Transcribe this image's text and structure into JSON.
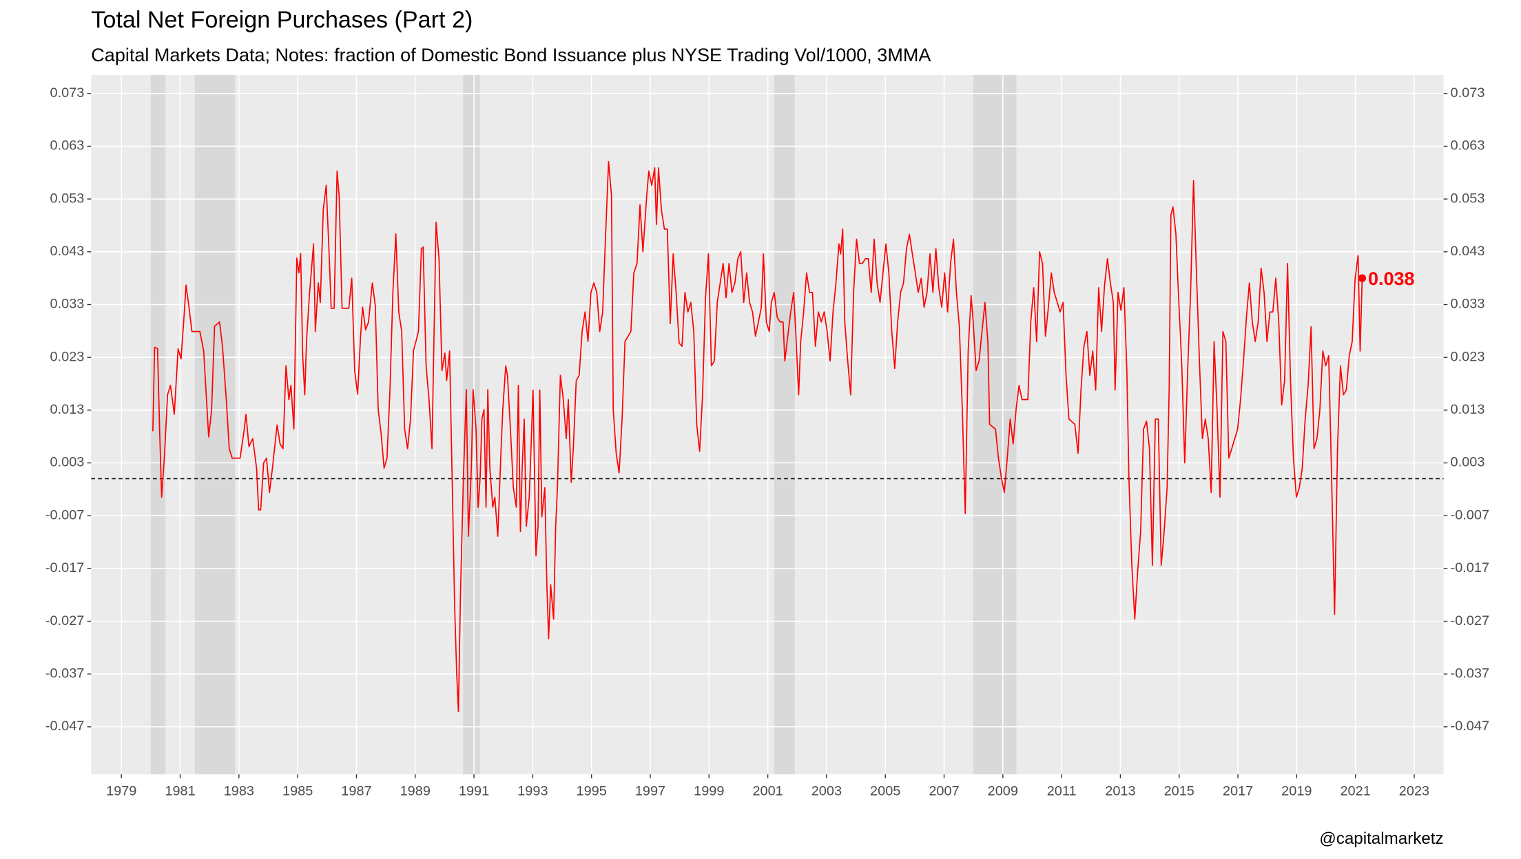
{
  "chart_data": {
    "type": "line",
    "title": "Total Net Foreign Purchases (Part 2)",
    "subtitle": "Capital Markets Data; Notes: fraction of Domestic Bond Issuance plus NYSE Trading Vol/1000, 3MMA",
    "caption": "@capitalmarketz",
    "xlim": [
      1977.97,
      2024.0
    ],
    "ylim": [
      -0.056,
      0.0765
    ],
    "xticks": [
      1979,
      1981,
      1983,
      1985,
      1987,
      1989,
      1991,
      1993,
      1995,
      1997,
      1999,
      2001,
      2003,
      2005,
      2007,
      2009,
      2011,
      2013,
      2015,
      2017,
      2019,
      2021,
      2023
    ],
    "yticks": [
      -0.047,
      -0.037,
      -0.027,
      -0.017,
      -0.007,
      0.003,
      0.013,
      0.023,
      0.033,
      0.043,
      0.053,
      0.063,
      0.073
    ],
    "grid": true,
    "secondary_axis_mirror": true,
    "hline": 0,
    "recessions": [
      [
        1980.0,
        1980.5
      ],
      [
        1981.5,
        1982.87
      ],
      [
        1990.63,
        1991.2
      ],
      [
        2001.22,
        2001.92
      ],
      [
        2007.99,
        2009.46
      ]
    ],
    "recession_color": "#d9d9d9",
    "annotation": "0.038",
    "series": [
      {
        "name": "Total Net Foreign Purchases",
        "color": "#ff0000",
        "x": [
          1980.07,
          1980.13,
          1980.23,
          1980.3,
          1980.37,
          1980.47,
          1980.57,
          1980.67,
          1980.8,
          1980.93,
          1981.03,
          1981.13,
          1981.2,
          1981.3,
          1981.4,
          1981.67,
          1981.8,
          1981.97,
          1982.07,
          1982.17,
          1982.34,
          1982.44,
          1982.57,
          1982.67,
          1982.77,
          1983.04,
          1983.17,
          1983.24,
          1983.34,
          1983.47,
          1983.6,
          1983.67,
          1983.74,
          1983.84,
          1983.94,
          1984.04,
          1984.14,
          1984.3,
          1984.4,
          1984.5,
          1984.6,
          1984.7,
          1984.77,
          1984.87,
          1984.97,
          1985.04,
          1985.1,
          1985.17,
          1985.24,
          1985.3,
          1985.4,
          1985.54,
          1985.6,
          1985.7,
          1985.77,
          1985.87,
          1985.97,
          1986.07,
          1986.14,
          1986.24,
          1986.34,
          1986.41,
          1986.51,
          1986.74,
          1986.84,
          1986.94,
          1987.04,
          1987.14,
          1987.21,
          1987.31,
          1987.41,
          1987.54,
          1987.64,
          1987.74,
          1987.84,
          1987.94,
          1988.04,
          1988.14,
          1988.24,
          1988.34,
          1988.44,
          1988.54,
          1988.64,
          1988.74,
          1988.84,
          1988.94,
          1989.11,
          1989.21,
          1989.27,
          1989.37,
          1989.47,
          1989.57,
          1989.71,
          1989.81,
          1989.91,
          1990.01,
          1990.07,
          1990.17,
          1990.27,
          1990.34,
          1990.41,
          1990.47,
          1990.54,
          1990.64,
          1990.74,
          1990.81,
          1990.91,
          1990.97,
          1991.07,
          1991.14,
          1991.21,
          1991.27,
          1991.34,
          1991.41,
          1991.47,
          1991.54,
          1991.64,
          1991.71,
          1991.81,
          1991.91,
          1991.98,
          1992.08,
          1992.14,
          1992.24,
          1992.34,
          1992.44,
          1992.51,
          1992.58,
          1992.64,
          1992.71,
          1992.78,
          1992.88,
          1992.94,
          1993.01,
          1993.11,
          1993.18,
          1993.24,
          1993.31,
          1993.41,
          1993.48,
          1993.54,
          1993.61,
          1993.71,
          1993.78,
          1993.84,
          1993.94,
          1994.04,
          1994.14,
          1994.21,
          1994.31,
          1994.38,
          1994.48,
          1994.58,
          1994.68,
          1994.78,
          1994.88,
          1994.98,
          1995.08,
          1995.18,
          1995.28,
          1995.38,
          1995.48,
          1995.58,
          1995.68,
          1995.74,
          1995.84,
          1995.94,
          1996.04,
          1996.14,
          1996.34,
          1996.44,
          1996.55,
          1996.65,
          1996.75,
          1996.88,
          1996.95,
          1997.05,
          1997.15,
          1997.21,
          1997.28,
          1997.38,
          1997.48,
          1997.58,
          1997.68,
          1997.78,
          1997.88,
          1997.98,
          1998.08,
          1998.18,
          1998.28,
          1998.38,
          1998.48,
          1998.58,
          1998.68,
          1998.78,
          1998.88,
          1998.98,
          1999.08,
          1999.18,
          1999.28,
          1999.38,
          1999.48,
          1999.58,
          1999.68,
          1999.78,
          1999.88,
          1999.98,
          2000.08,
          2000.18,
          2000.28,
          2000.38,
          2000.48,
          2000.58,
          2000.68,
          2000.78,
          2000.85,
          2000.95,
          2001.05,
          2001.12,
          2001.22,
          2001.32,
          2001.42,
          2001.52,
          2001.58,
          2001.68,
          2001.78,
          2001.88,
          2001.95,
          2002.05,
          2002.12,
          2002.22,
          2002.32,
          2002.42,
          2002.52,
          2002.62,
          2002.72,
          2002.82,
          2002.92,
          2003.02,
          2003.12,
          2003.22,
          2003.32,
          2003.42,
          2003.48,
          2003.55,
          2003.62,
          2003.72,
          2003.82,
          2003.92,
          2004.02,
          2004.12,
          2004.22,
          2004.32,
          2004.42,
          2004.52,
          2004.62,
          2004.72,
          2004.82,
          2004.92,
          2005.02,
          2005.12,
          2005.22,
          2005.32,
          2005.42,
          2005.52,
          2005.62,
          2005.72,
          2005.82,
          2005.92,
          2006.02,
          2006.12,
          2006.22,
          2006.32,
          2006.42,
          2006.52,
          2006.62,
          2006.72,
          2006.82,
          2006.92,
          2007.02,
          2007.12,
          2007.22,
          2007.32,
          2007.42,
          2007.52,
          2007.62,
          2007.72,
          2007.82,
          2007.92,
          2007.99,
          2008.09,
          2008.19,
          2008.29,
          2008.39,
          2008.49,
          2008.55,
          2008.75,
          2008.85,
          2008.95,
          2009.05,
          2009.15,
          2009.25,
          2009.35,
          2009.45,
          2009.55,
          2009.65,
          2009.85,
          2009.95,
          2010.05,
          2010.15,
          2010.25,
          2010.35,
          2010.45,
          2010.55,
          2010.65,
          2010.75,
          2010.95,
          2011.05,
          2011.15,
          2011.25,
          2011.45,
          2011.56,
          2011.66,
          2011.76,
          2011.86,
          2011.96,
          2012.06,
          2012.16,
          2012.26,
          2012.36,
          2012.46,
          2012.56,
          2012.66,
          2012.76,
          2012.82,
          2012.92,
          2013.02,
          2013.12,
          2013.22,
          2013.29,
          2013.39,
          2013.49,
          2013.59,
          2013.69,
          2013.79,
          2013.89,
          2013.99,
          2014.09,
          2014.19,
          2014.29,
          2014.39,
          2014.49,
          2014.59,
          2014.66,
          2014.72,
          2014.79,
          2014.89,
          2014.99,
          2015.09,
          2015.19,
          2015.29,
          2015.39,
          2015.49,
          2015.59,
          2015.69,
          2015.79,
          2015.89,
          2015.99,
          2016.09,
          2016.19,
          2016.29,
          2016.39,
          2016.49,
          2016.59,
          2016.69,
          2016.79,
          2016.99,
          2017.09,
          2017.19,
          2017.29,
          2017.39,
          2017.49,
          2017.59,
          2017.69,
          2017.79,
          2017.89,
          2017.99,
          2018.09,
          2018.19,
          2018.29,
          2018.39,
          2018.49,
          2018.59,
          2018.69,
          2018.79,
          2018.89,
          2018.99,
          2019.09,
          2019.19,
          2019.29,
          2019.39,
          2019.49,
          2019.59,
          2019.69,
          2019.79,
          2019.89,
          2019.99,
          2020.09,
          2020.19,
          2020.29,
          2020.39,
          2020.49,
          2020.59,
          2020.69,
          2020.79,
          2020.89,
          2020.99,
          2021.09,
          2021.16,
          2021.23
        ],
        "values": [
          0.009,
          0.0249,
          0.0247,
          0.0094,
          -0.0035,
          0.0048,
          0.0159,
          0.0177,
          0.0122,
          0.0246,
          0.0227,
          0.0306,
          0.0367,
          0.0325,
          0.0279,
          0.0279,
          0.0242,
          0.0079,
          0.0131,
          0.0289,
          0.0297,
          0.0251,
          0.015,
          0.0057,
          0.0039,
          0.0039,
          0.0089,
          0.0122,
          0.0061,
          0.0076,
          0.002,
          -0.0059,
          -0.0059,
          0.003,
          0.0039,
          -0.0026,
          0.002,
          0.0102,
          0.0066,
          0.0057,
          0.0214,
          0.015,
          0.0177,
          0.0094,
          0.0418,
          0.039,
          0.0427,
          0.0233,
          0.0159,
          0.0261,
          0.0349,
          0.0445,
          0.0279,
          0.0371,
          0.0334,
          0.051,
          0.0556,
          0.0426,
          0.0323,
          0.0323,
          0.0583,
          0.0537,
          0.0323,
          0.0323,
          0.038,
          0.0205,
          0.016,
          0.027,
          0.0325,
          0.0282,
          0.0297,
          0.0371,
          0.0329,
          0.0131,
          0.0085,
          0.002,
          0.0039,
          0.0168,
          0.0353,
          0.0464,
          0.0316,
          0.0279,
          0.0094,
          0.0057,
          0.0113,
          0.0242,
          0.0279,
          0.0436,
          0.0439,
          0.0214,
          0.015,
          0.0057,
          0.0486,
          0.0417,
          0.0205,
          0.0238,
          0.0186,
          0.0242,
          -0.0035,
          -0.0238,
          -0.0367,
          -0.0441,
          -0.022,
          0.0002,
          0.0169,
          -0.0109,
          0.002,
          0.0169,
          0.0094,
          -0.0054,
          0.0002,
          0.0113,
          0.0131,
          -0.0054,
          0.0169,
          0.002,
          -0.0054,
          -0.0035,
          -0.0109,
          0.0039,
          0.0131,
          0.0214,
          0.0196,
          0.0094,
          -0.0017,
          -0.0054,
          0.0177,
          -0.01,
          0.002,
          0.0113,
          -0.009,
          -0.0035,
          0.0057,
          0.0168,
          -0.0146,
          -0.009,
          0.0168,
          -0.0072,
          -0.0017,
          -0.0201,
          -0.0303,
          -0.0201,
          -0.0266,
          -0.009,
          -0.0017,
          0.0196,
          0.015,
          0.0076,
          0.015,
          -0.0007,
          0.0057,
          0.0186,
          0.0196,
          0.0279,
          0.0316,
          0.026,
          0.0353,
          0.0371,
          0.0353,
          0.0279,
          0.0316,
          0.0463,
          0.0601,
          0.0537,
          0.0131,
          0.0048,
          0.0011,
          0.0113,
          0.026,
          0.0279,
          0.039,
          0.0408,
          0.0519,
          0.043,
          0.0537,
          0.0583,
          0.0556,
          0.0589,
          0.0482,
          0.0589,
          0.0509,
          0.0473,
          0.0473,
          0.0294,
          0.0426,
          0.0353,
          0.0257,
          0.0251,
          0.0353,
          0.0316,
          0.0334,
          0.0279,
          0.0103,
          0.0052,
          0.0159,
          0.0343,
          0.0426,
          0.0214,
          0.0223,
          0.0334,
          0.0371,
          0.0408,
          0.0343,
          0.0408,
          0.0353,
          0.0371,
          0.0417,
          0.043,
          0.0334,
          0.039,
          0.0334,
          0.0316,
          0.027,
          0.0297,
          0.0325,
          0.0426,
          0.0297,
          0.0279,
          0.0334,
          0.0353,
          0.0306,
          0.0297,
          0.0297,
          0.0223,
          0.027,
          0.0316,
          0.0353,
          0.0279,
          0.0159,
          0.026,
          0.0316,
          0.039,
          0.0353,
          0.0353,
          0.0251,
          0.0316,
          0.0297,
          0.0316,
          0.0279,
          0.0223,
          0.0316,
          0.0371,
          0.0445,
          0.0426,
          0.0473,
          0.0297,
          0.0223,
          0.0159,
          0.0353,
          0.0454,
          0.0408,
          0.0408,
          0.0417,
          0.0417,
          0.0353,
          0.0454,
          0.0371,
          0.0334,
          0.039,
          0.0445,
          0.039,
          0.0279,
          0.0209,
          0.0297,
          0.0353,
          0.0371,
          0.0436,
          0.0463,
          0.0426,
          0.039,
          0.0353,
          0.038,
          0.0325,
          0.0353,
          0.0426,
          0.0353,
          0.0436,
          0.0362,
          0.0325,
          0.039,
          0.0316,
          0.0408,
          0.0454,
          0.0353,
          0.0288,
          0.0131,
          -0.0066,
          0.0242,
          0.0347,
          0.0297,
          0.0205,
          0.0223,
          0.0279,
          0.0334,
          0.026,
          0.0103,
          0.0094,
          0.0039,
          0.0002,
          -0.0026,
          0.0039,
          0.0113,
          0.0066,
          0.0131,
          0.0177,
          0.015,
          0.015,
          0.0297,
          0.0362,
          0.026,
          0.043,
          0.0408,
          0.027,
          0.0325,
          0.039,
          0.0353,
          0.0316,
          0.0334,
          0.0196,
          0.0113,
          0.0103,
          0.0048,
          0.0168,
          0.0251,
          0.0279,
          0.0196,
          0.0242,
          0.0168,
          0.0362,
          0.0279,
          0.0366,
          0.0417,
          0.0371,
          0.0334,
          0.0168,
          0.0353,
          0.0319,
          0.0362,
          0.0205,
          0.0002,
          -0.0164,
          -0.0266,
          -0.0174,
          -0.01,
          0.0094,
          0.0109,
          0.0057,
          -0.0164,
          0.0113,
          0.0113,
          -0.0164,
          -0.01,
          -0.0017,
          0.0168,
          0.05,
          0.0515,
          0.0463,
          0.0334,
          0.0214,
          0.003,
          0.0205,
          0.0353,
          0.0565,
          0.039,
          0.0223,
          0.0076,
          0.0113,
          0.0076,
          -0.0026,
          0.026,
          0.0131,
          -0.0035,
          0.0279,
          0.026,
          0.0039,
          0.0057,
          0.0094,
          0.015,
          0.0223,
          0.0306,
          0.0371,
          0.0297,
          0.026,
          0.0297,
          0.0399,
          0.0353,
          0.026,
          0.0316,
          0.0316,
          0.038,
          0.0297,
          0.014,
          0.0186,
          0.0408,
          0.0186,
          0.0039,
          -0.0035,
          -0.0017,
          0.002,
          0.0113,
          0.0177,
          0.0288,
          0.0057,
          0.0076,
          0.0131,
          0.0242,
          0.0214,
          0.0233,
          0.0002,
          -0.0257,
          0.0057,
          0.0214,
          0.0159,
          0.0168,
          0.0233,
          0.026,
          0.038,
          0.0423,
          0.0242,
          0.038
        ]
      }
    ]
  }
}
